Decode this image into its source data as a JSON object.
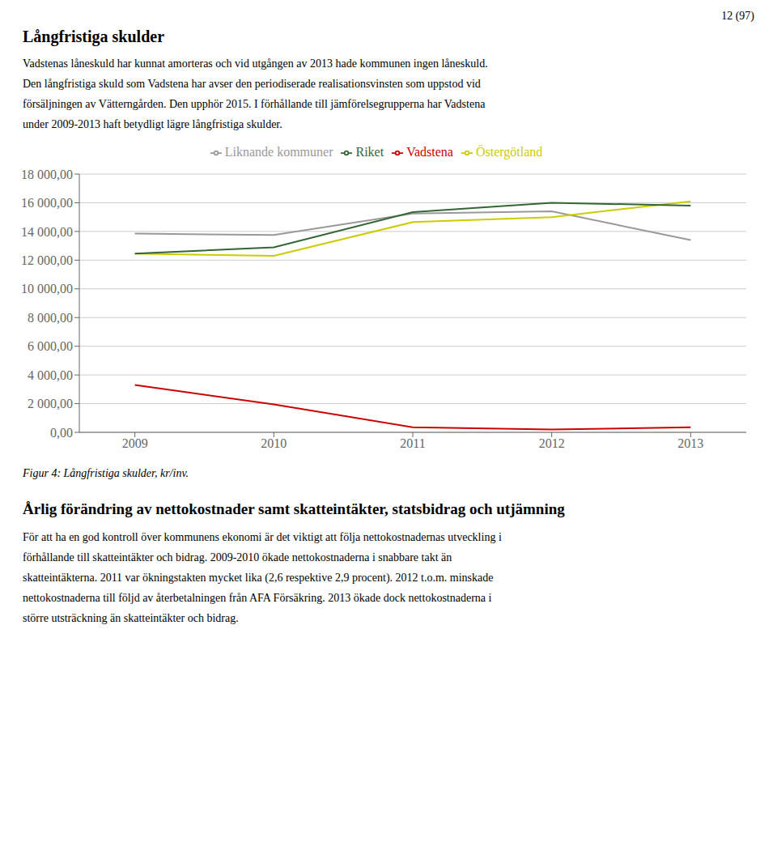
{
  "chart_data": {
    "type": "line",
    "title": "Långfristiga skulder",
    "annotations": [
      "12 (97)",
      "Vadstenas låneskuld har kunnat amorteras och vid utgången av 2013 hade kommunen ingen låneskuld.",
      "Den långfristiga skuld som Vadstena har avser den periodiserade realisationsvinsten som uppstod vid",
      "försäljningen av Vätterngården. Den upphör 2015. I förhållande till jämförelsegrupperna har Vadstena",
      "under 2009-2013 haft betydligt lägre långfristiga skulder.",
      "Figur 4: Långfristiga skulder, kr/inv.",
      "Årlig förändring av nettokostnader samt skatteintäkter, statsbidrag och utjämning",
      "För att ha en god kontroll över kommunens ekonomi är det viktigt att följa nettokostnadernas utveckling i",
      "förhållande till skatteintäkter och bidrag. 2009-2010 ökade nettokostnaderna i snabbare takt än",
      "skatteintäkterna. 2011 var ökningstakten mycket lika (2,6 respektive 2,9 procent). 2012 t.o.m. minskade",
      "nettokostnaderna till följd av återbetalningen från AFA Försäkring. 2013 ökade dock nettokostnaderna i",
      "större utsträckning än skatteintäkter och bidrag."
    ],
    "x": [
      2009,
      2010,
      2011,
      2012,
      2013
    ],
    "xlim": [
      2008.6,
      2013.4
    ],
    "xticks": [
      2009,
      2010,
      2011,
      2012,
      2013
    ],
    "series": [
      {
        "name": "Vadstena",
        "color": "#cc0000",
        "values": [
          3300,
          1950,
          350,
          200,
          350
        ]
      },
      {
        "name": "Liknande kommuner",
        "color": "#999999",
        "values": [
          13850,
          13750,
          15250,
          15400,
          13400
        ]
      },
      {
        "name": "Östergötland",
        "color": "#cccc00",
        "values": [
          12450,
          12300,
          14650,
          15000,
          16100
        ]
      },
      {
        "name": "Riket",
        "color": "#336633",
        "values": [
          12450,
          12900,
          15350,
          16000,
          15800
        ]
      }
    ],
    "ylim": [
      0,
      18000
    ],
    "yticks": [
      {
        "value": 0,
        "label": "0,00"
      },
      {
        "value": 2000,
        "label": "2 000,00"
      },
      {
        "value": 4000,
        "label": "4 000,00"
      },
      {
        "value": 6000,
        "label": "6 000,00"
      },
      {
        "value": 8000,
        "label": "8 000,00"
      },
      {
        "value": 10000,
        "label": "10 000,00"
      },
      {
        "value": 12000,
        "label": "12 000,00"
      },
      {
        "value": 14000,
        "label": "14 000,00"
      },
      {
        "value": 16000,
        "label": "16 000,00"
      },
      {
        "value": 18000,
        "label": "18 000,00"
      }
    ],
    "grid": "y",
    "legend": "top"
  }
}
